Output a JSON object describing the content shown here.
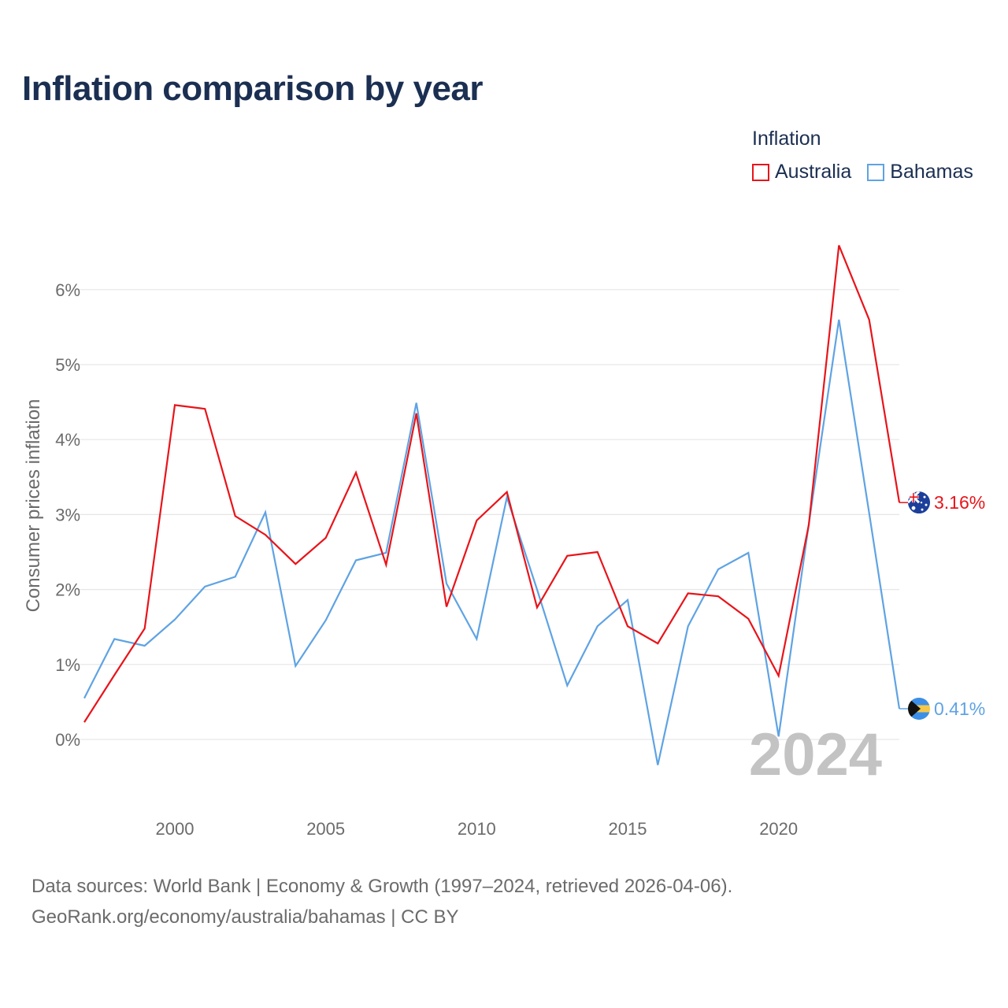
{
  "title": "Inflation comparison by year",
  "legend": {
    "title": "Inflation",
    "items": [
      {
        "name": "Australia",
        "color": "#e8141a"
      },
      {
        "name": "Bahamas",
        "color": "#5fa3e3"
      }
    ]
  },
  "year_watermark": "2024",
  "end_labels": {
    "australia": "3.16%",
    "bahamas": "0.41%"
  },
  "footer": {
    "line1": "Data sources: World Bank | Economy & Growth (1997–2024, retrieved 2026-04-06).",
    "line2": "GeoRank.org/economy/australia/bahamas | CC BY"
  },
  "chart_data": {
    "type": "line",
    "title": "Inflation comparison by year",
    "xlabel": "",
    "ylabel": "Consumer prices inflation",
    "x": [
      1997,
      1998,
      1999,
      2000,
      2001,
      2002,
      2003,
      2004,
      2005,
      2006,
      2007,
      2008,
      2009,
      2010,
      2011,
      2012,
      2013,
      2014,
      2015,
      2016,
      2017,
      2018,
      2019,
      2020,
      2021,
      2022,
      2023,
      2024
    ],
    "xlim": [
      1997,
      2024
    ],
    "ylim": [
      -0.8,
      7
    ],
    "x_ticks": [
      2000,
      2005,
      2010,
      2015,
      2020
    ],
    "x_tick_labels": [
      "2000",
      "2005",
      "2010",
      "2015",
      "2020"
    ],
    "y_ticks": [
      0,
      1,
      2,
      3,
      4,
      5,
      6
    ],
    "y_tick_labels": [
      "0%",
      "1%",
      "2%",
      "3%",
      "4%",
      "5%",
      "6%"
    ],
    "grid": true,
    "legend_position": "top-right",
    "series": [
      {
        "name": "Australia",
        "color": "#e8141a",
        "values": [
          0.23,
          0.86,
          1.48,
          4.46,
          4.41,
          2.98,
          2.73,
          2.34,
          2.69,
          3.56,
          2.33,
          4.35,
          1.77,
          2.92,
          3.3,
          1.76,
          2.45,
          2.5,
          1.51,
          1.28,
          1.95,
          1.91,
          1.61,
          0.85,
          2.86,
          6.59,
          5.6,
          3.16
        ]
      },
      {
        "name": "Bahamas",
        "color": "#5fa3e3",
        "values": [
          0.55,
          1.34,
          1.25,
          1.6,
          2.04,
          2.17,
          3.03,
          0.98,
          1.59,
          2.39,
          2.49,
          4.49,
          2.08,
          1.34,
          3.23,
          2.0,
          0.72,
          1.51,
          1.86,
          -0.34,
          1.51,
          2.27,
          2.49,
          0.04,
          2.87,
          5.6,
          3.02,
          0.41
        ]
      }
    ]
  }
}
